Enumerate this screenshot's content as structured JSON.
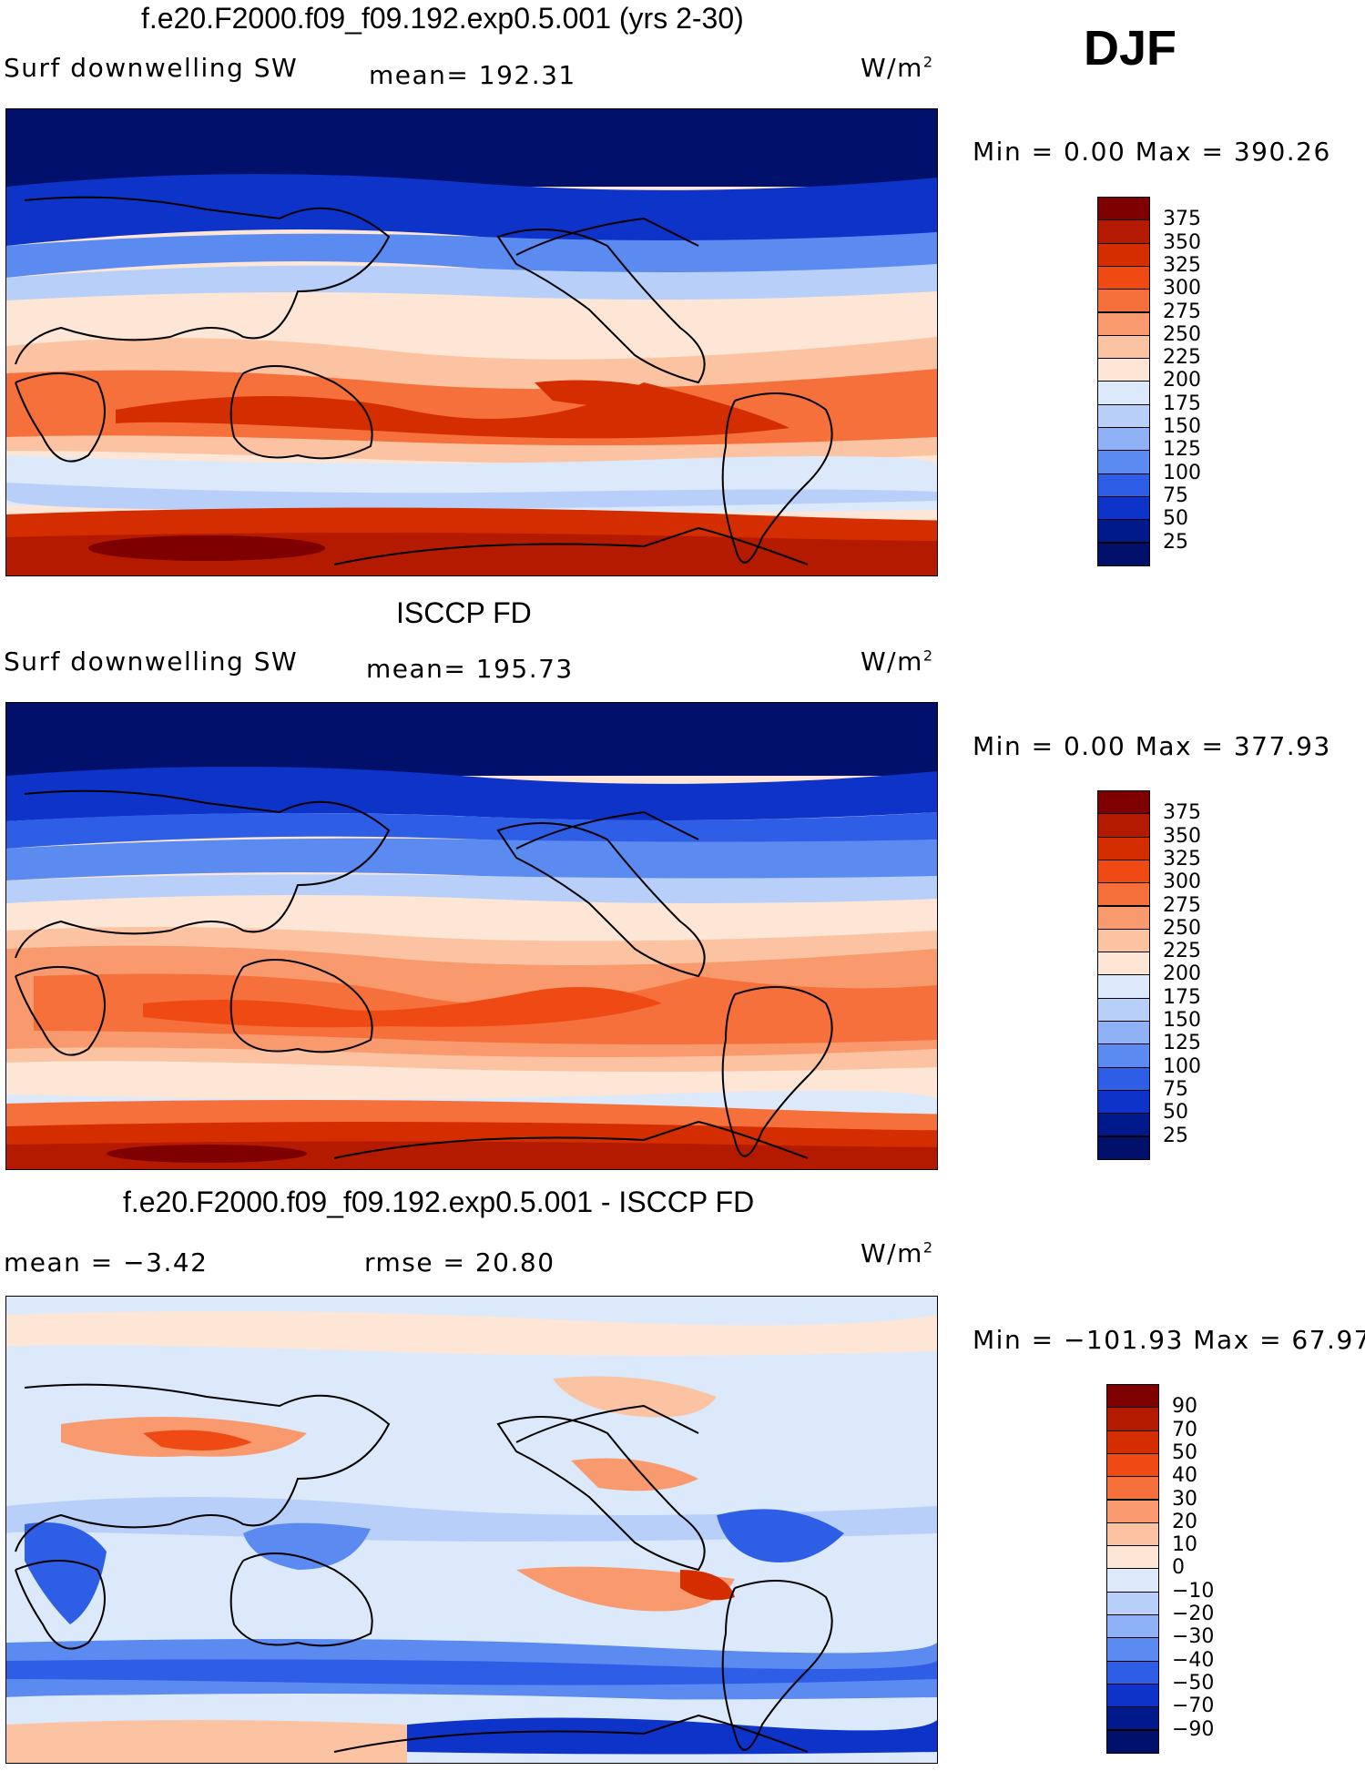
{
  "season": "DJF",
  "panels": [
    {
      "title": "f.e20.F2000.f09_f09.192.exp0.5.001 (yrs 2-30)",
      "left_label": "Surf downwelling SW",
      "center_label": "mean= 192.31",
      "units": "W/m",
      "units_sup": "2",
      "minmax": "Min =    0.00 Max = 390.26",
      "colorbar_labels": [
        "375",
        "350",
        "325",
        "300",
        "275",
        "250",
        "225",
        "200",
        "175",
        "150",
        "125",
        "100",
        "75",
        "50",
        "25"
      ]
    },
    {
      "title": "ISCCP FD",
      "left_label": "Surf downwelling SW",
      "center_label": "mean= 195.73",
      "units": "W/m",
      "units_sup": "2",
      "minmax": "Min =    0.00 Max = 377.93",
      "colorbar_labels": [
        "375",
        "350",
        "325",
        "300",
        "275",
        "250",
        "225",
        "200",
        "175",
        "150",
        "125",
        "100",
        "75",
        "50",
        "25"
      ]
    },
    {
      "title": "f.e20.F2000.f09_f09.192.exp0.5.001 - ISCCP FD",
      "left_label": "mean =   −3.42",
      "center_label": "rmse =   20.80",
      "units": "W/m",
      "units_sup": "2",
      "minmax": "Min = −101.93 Max =   67.97",
      "colorbar_labels": [
        "90",
        "70",
        "50",
        "40",
        "30",
        "20",
        "10",
        "0",
        "−10",
        "−20",
        "−30",
        "−40",
        "−50",
        "−70",
        "−90"
      ]
    }
  ],
  "colors": {
    "abs_scale": [
      "#7f0000",
      "#b31a00",
      "#d42e00",
      "#ef4a14",
      "#f5703a",
      "#f89a6e",
      "#fcc3a2",
      "#fde6d5",
      "#dbe9fb",
      "#b8d0f9",
      "#8fb2f6",
      "#5b8af0",
      "#2e5ee5",
      "#0e33c8",
      "#001a8c",
      "#00106b"
    ],
    "diff_scale": [
      "#7f0000",
      "#b31a00",
      "#d42e00",
      "#ef4a14",
      "#f5703a",
      "#f89a6e",
      "#fcc3a2",
      "#fde6d5",
      "#dbe9fb",
      "#b8d0f9",
      "#8fb2f6",
      "#5b8af0",
      "#2e5ee5",
      "#0e33c8",
      "#001a8c",
      "#00106b"
    ]
  }
}
